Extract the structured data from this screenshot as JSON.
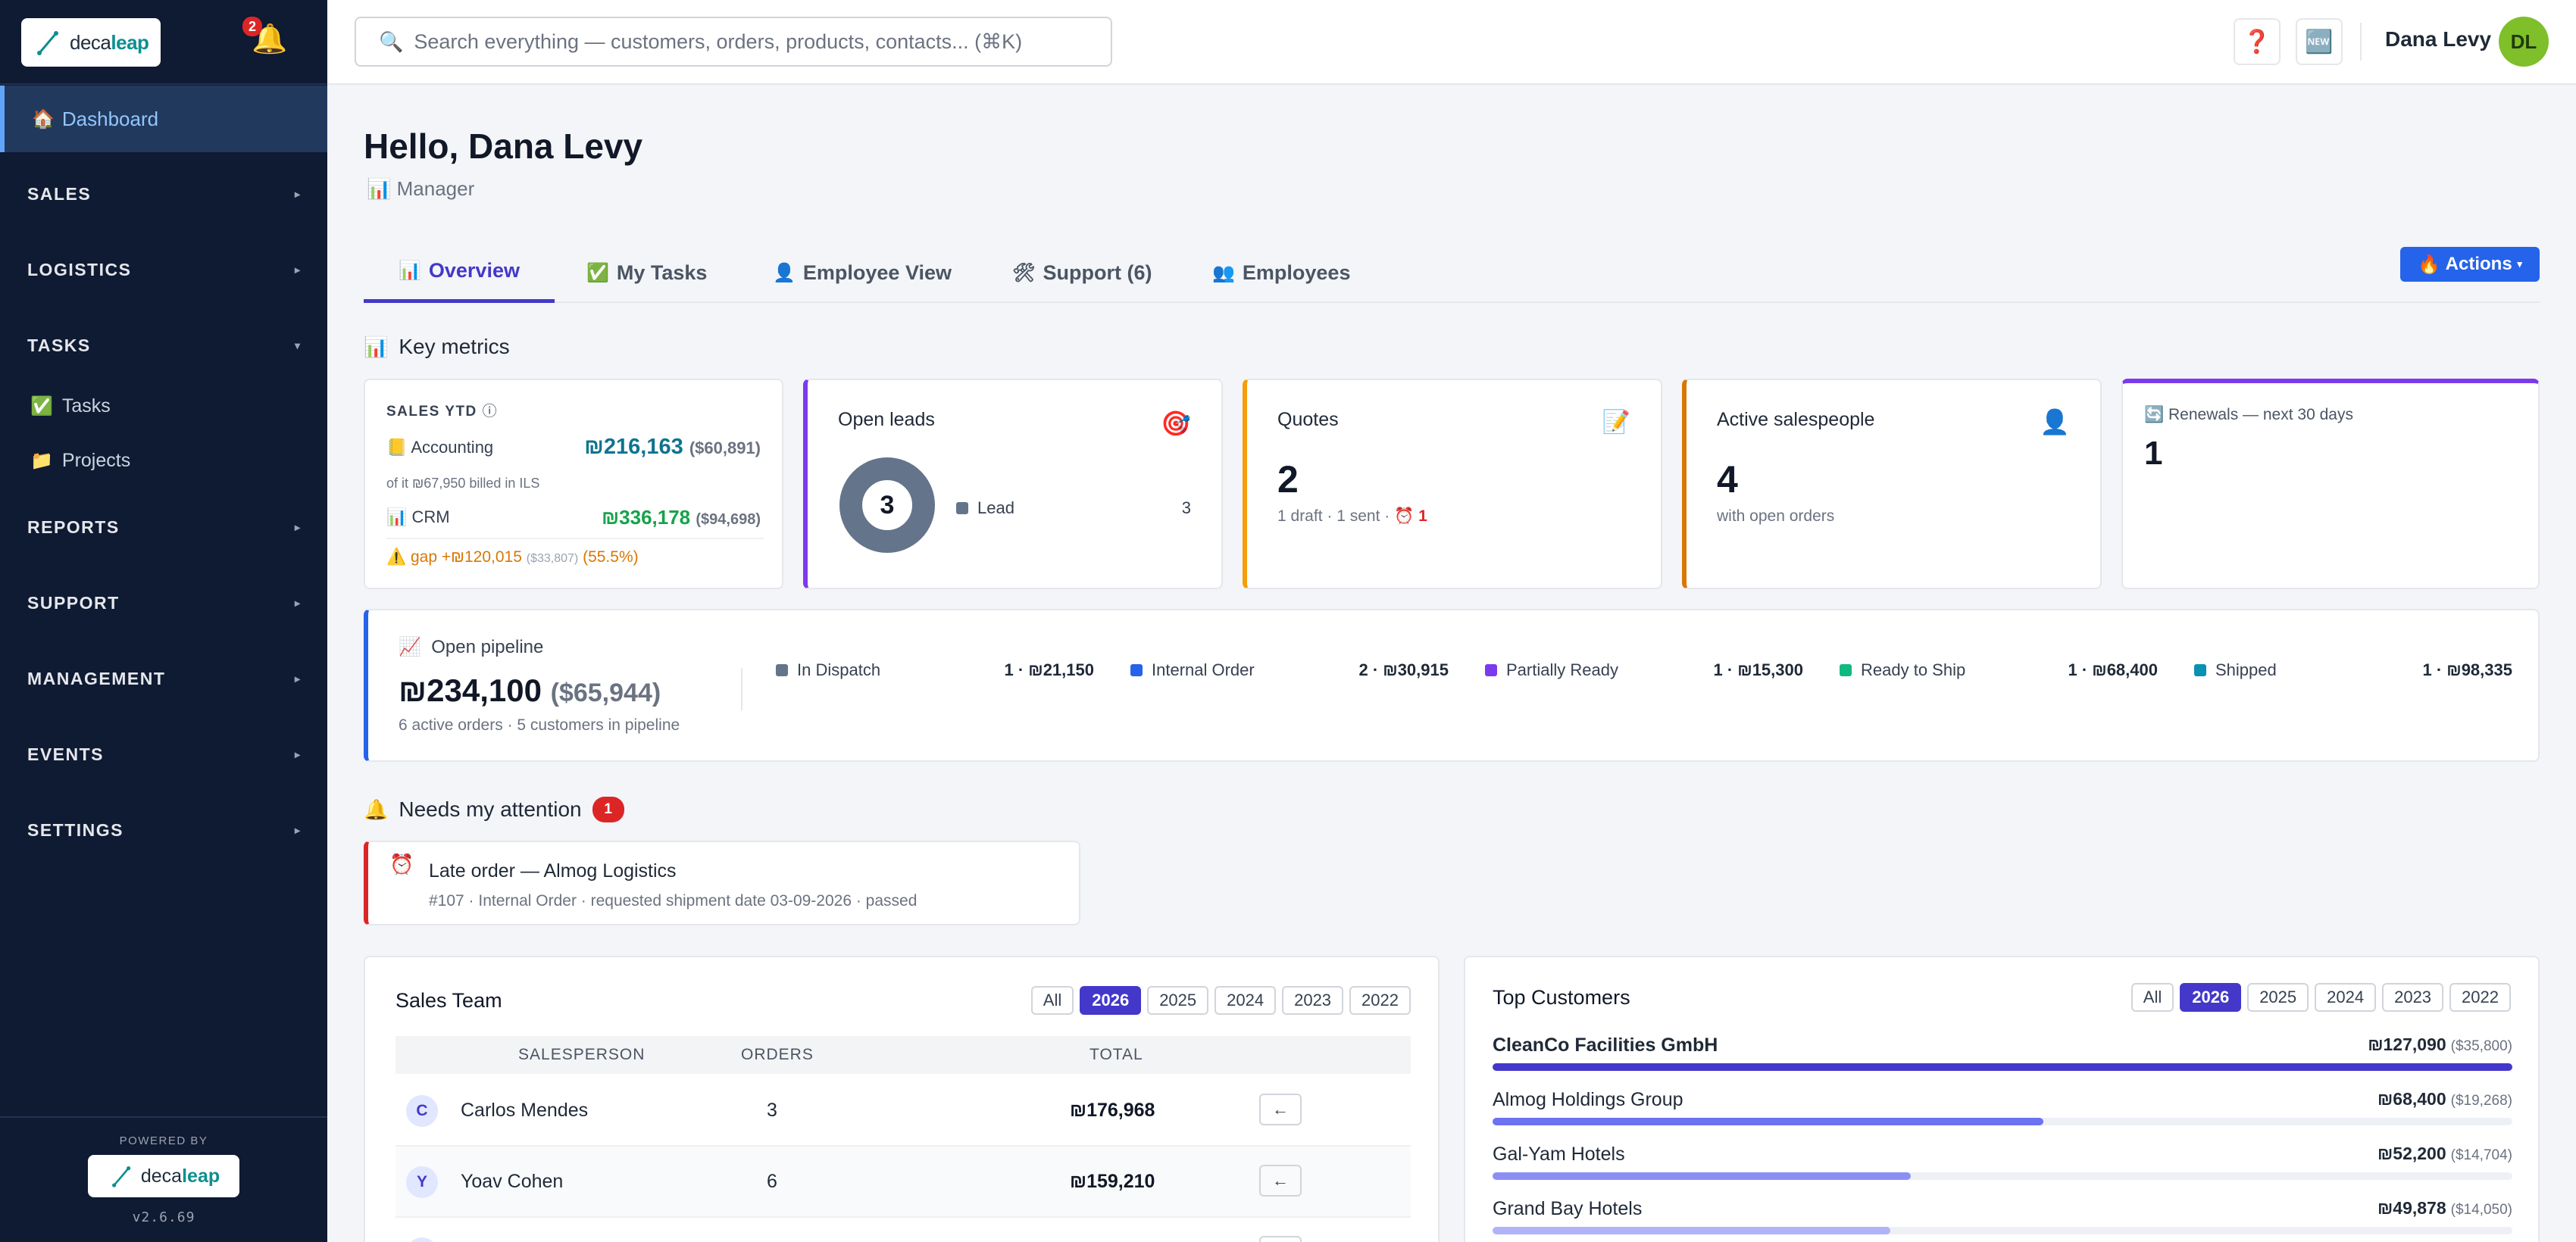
{
  "brand": {
    "name_a": "deca",
    "name_b": "leap"
  },
  "notifications": {
    "count": "2"
  },
  "sidebar": {
    "active": "Dashboard",
    "sections": [
      "SALES",
      "LOGISTICS",
      "TASKS",
      "REPORTS",
      "SUPPORT",
      "MANAGEMENT",
      "EVENTS",
      "SETTINGS"
    ],
    "task_items": [
      "Tasks",
      "Projects"
    ],
    "powered_by": "POWERED BY",
    "version": "v2.6.69"
  },
  "search": {
    "placeholder": "Search everything — customers, orders, products, contacts... (⌘K)"
  },
  "user": {
    "name": "Dana Levy",
    "initials": "DL",
    "greeting": "Hello, Dana Levy",
    "role": "Manager"
  },
  "tabs": [
    {
      "label": "Overview",
      "icon": "chart-icon"
    },
    {
      "label": "My Tasks",
      "icon": "checkbox-icon"
    },
    {
      "label": "Employee View",
      "icon": "person-icon"
    },
    {
      "label": "Support (6)",
      "icon": "tools-icon"
    },
    {
      "label": "Employees",
      "icon": "people-icon"
    }
  ],
  "actions_label": "Actions",
  "key_metrics": {
    "title": "Key metrics",
    "sales_ytd": {
      "label": "SALES YTD",
      "accounting_label": "Accounting",
      "accounting_value": "₪216,163",
      "accounting_usd": "($60,891)",
      "billed_note": "of it ₪67,950 billed in ILS",
      "crm_label": "CRM",
      "crm_value": "₪336,178",
      "crm_usd": "($94,698)",
      "gap_label": "gap +₪120,015",
      "gap_usd": "($33,807)",
      "gap_pct": "(55.5%)"
    },
    "open_leads": {
      "title": "Open leads",
      "total": "3",
      "legend_label": "Lead",
      "legend_value": "3"
    },
    "quotes": {
      "title": "Quotes",
      "value": "2",
      "sub": "1 draft · 1 sent ·",
      "alert": "1"
    },
    "active_salespeople": {
      "title": "Active salespeople",
      "value": "4",
      "sub": "with open orders"
    },
    "renewals": {
      "title": "Renewals — next 30 days",
      "value": "1"
    }
  },
  "pipeline": {
    "title": "Open pipeline",
    "value": "₪234,100",
    "usd": "($65,944)",
    "sub": "6 active orders · 5 customers in pipeline",
    "stages": [
      {
        "label": "In Dispatch",
        "value": "1 · ₪21,150",
        "color": "#64748b"
      },
      {
        "label": "Internal Order",
        "value": "2 · ₪30,915",
        "color": "#2563eb"
      },
      {
        "label": "Partially Ready",
        "value": "1 · ₪15,300",
        "color": "#7c3aed"
      },
      {
        "label": "Ready to Ship",
        "value": "1 · ₪68,400",
        "color": "#10b981"
      },
      {
        "label": "Shipped",
        "value": "1 · ₪98,335",
        "color": "#0891b2"
      }
    ]
  },
  "attention": {
    "title": "Needs my attention",
    "count": "1",
    "item_title": "Late order — Almog Logistics",
    "item_sub": "#107 · Internal Order · requested shipment date 03-09-2026 · passed"
  },
  "sales_team": {
    "title": "Sales Team",
    "filters": [
      "All",
      "2026",
      "2025",
      "2024",
      "2023",
      "2022"
    ],
    "selected": "2026",
    "columns": [
      "SALESPERSON",
      "ORDERS",
      "TOTAL"
    ],
    "rows": [
      {
        "initial": "C",
        "name": "Carlos Mendes",
        "orders": "3",
        "total": "₪176,968",
        "action": "←"
      },
      {
        "initial": "Y",
        "name": "Yoav Cohen",
        "orders": "6",
        "total": "₪159,210",
        "action": "←"
      }
    ]
  },
  "top_customers": {
    "title": "Top Customers",
    "filters": [
      "All",
      "2026",
      "2025",
      "2024",
      "2023",
      "2022"
    ],
    "selected": "2026",
    "rows": [
      {
        "name": "CleanCo Facilities GmbH",
        "value": "₪127,090",
        "usd": "($35,800)",
        "share": 1.0,
        "color": "#4338ca"
      },
      {
        "name": "Almog Holdings Group",
        "value": "₪68,400",
        "usd": "($19,268)",
        "share": 0.54,
        "color": "#6d72f0"
      },
      {
        "name": "Gal-Yam Hotels",
        "value": "₪52,200",
        "usd": "($14,704)",
        "share": 0.41,
        "color": "#8b8ff5"
      },
      {
        "name": "Grand Bay Hotels",
        "value": "₪49,878",
        "usd": "($14,050)",
        "share": 0.39,
        "color": "#b0b3f8"
      }
    ]
  }
}
